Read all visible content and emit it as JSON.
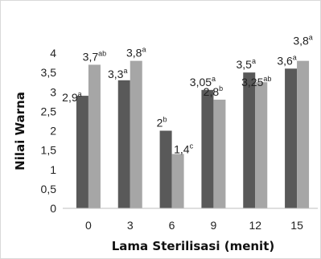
{
  "chart_data": {
    "type": "bar",
    "title": "",
    "xlabel": "Lama Sterilisasi (menit)",
    "ylabel": "Nilai Warna",
    "categories": [
      "0",
      "3",
      "6",
      "9",
      "12",
      "15"
    ],
    "ylim": [
      0,
      4
    ],
    "yticks": [
      "0",
      "0,5",
      "1",
      "1,5",
      "2",
      "2,5",
      "3",
      "3,5",
      "4"
    ],
    "grid": false,
    "legend": "none",
    "series": [
      {
        "values": [
          2.9,
          3.3,
          2.0,
          3.05,
          3.5,
          3.6
        ],
        "labels": [
          "2,9",
          "3,3",
          "2",
          "3,05",
          "3,5",
          "3,6"
        ],
        "superscripts": [
          "a",
          "a",
          "b",
          "a",
          "a",
          "a"
        ],
        "color": "#595959"
      },
      {
        "values": [
          3.7,
          3.8,
          1.4,
          2.8,
          3.25,
          3.8
        ],
        "labels": [
          "3,7",
          "3,8",
          "1,4",
          "2,8",
          "3,25",
          "3,8"
        ],
        "superscripts": [
          "ab",
          "a",
          "c",
          "b",
          "ab",
          "a"
        ],
        "color": "#a6a6a6"
      }
    ]
  }
}
